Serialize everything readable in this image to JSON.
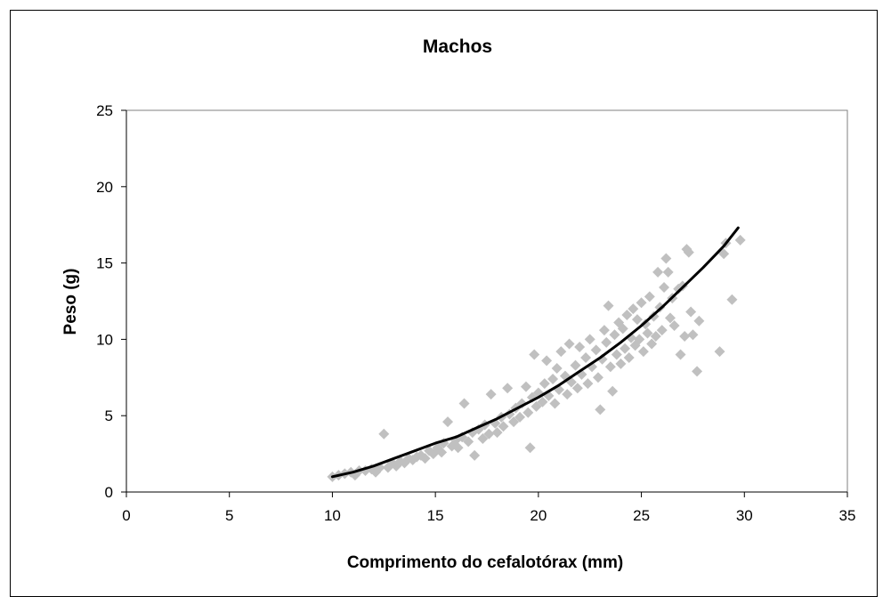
{
  "chart_data": {
    "type": "scatter",
    "title": "Machos",
    "xlabel": "Comprimento do cefalotórax (mm)",
    "ylabel": "Peso (g)",
    "xlim": [
      0,
      35
    ],
    "ylim": [
      0,
      25
    ],
    "xticks": [
      0,
      5,
      10,
      15,
      20,
      25,
      30,
      35
    ],
    "yticks": [
      0,
      5,
      10,
      15,
      20,
      25
    ],
    "x_tick_labels": [
      "0",
      "5",
      "10",
      "15",
      "20",
      "25",
      "30",
      "35"
    ],
    "y_tick_labels": [
      "0",
      "5",
      "10",
      "15",
      "20",
      "25"
    ],
    "grid": false,
    "legend": "none",
    "marker_color": "#c0c0c0",
    "line_color": "#000000",
    "series": [
      {
        "kind": "points",
        "points": [
          [
            10.0,
            1.0
          ],
          [
            10.3,
            1.1
          ],
          [
            10.6,
            1.2
          ],
          [
            10.9,
            1.3
          ],
          [
            11.1,
            1.1
          ],
          [
            11.3,
            1.4
          ],
          [
            11.6,
            1.4
          ],
          [
            11.9,
            1.5
          ],
          [
            12.1,
            1.3
          ],
          [
            12.3,
            1.6
          ],
          [
            12.5,
            3.8
          ],
          [
            12.7,
            1.6
          ],
          [
            12.9,
            1.9
          ],
          [
            13.1,
            1.7
          ],
          [
            13.3,
            2.0
          ],
          [
            13.5,
            1.9
          ],
          [
            13.7,
            2.2
          ],
          [
            13.9,
            2.1
          ],
          [
            14.1,
            2.3
          ],
          [
            14.3,
            2.4
          ],
          [
            14.5,
            2.2
          ],
          [
            14.7,
            2.7
          ],
          [
            14.9,
            2.5
          ],
          [
            15.1,
            2.9
          ],
          [
            15.3,
            2.6
          ],
          [
            15.4,
            3.2
          ],
          [
            15.6,
            4.6
          ],
          [
            15.8,
            3.0
          ],
          [
            16.0,
            3.4
          ],
          [
            16.1,
            2.9
          ],
          [
            16.3,
            3.6
          ],
          [
            16.4,
            5.8
          ],
          [
            16.6,
            3.3
          ],
          [
            16.8,
            3.9
          ],
          [
            16.9,
            2.4
          ],
          [
            17.1,
            4.1
          ],
          [
            17.3,
            3.5
          ],
          [
            17.4,
            4.4
          ],
          [
            17.6,
            3.8
          ],
          [
            17.7,
            6.4
          ],
          [
            17.9,
            4.5
          ],
          [
            18.0,
            3.9
          ],
          [
            18.2,
            4.9
          ],
          [
            18.3,
            4.3
          ],
          [
            18.5,
            6.8
          ],
          [
            18.6,
            5.1
          ],
          [
            18.8,
            4.6
          ],
          [
            18.9,
            5.5
          ],
          [
            19.1,
            4.9
          ],
          [
            19.2,
            5.8
          ],
          [
            19.4,
            6.9
          ],
          [
            19.5,
            5.2
          ],
          [
            19.6,
            2.9
          ],
          [
            19.7,
            6.2
          ],
          [
            19.8,
            9.0
          ],
          [
            19.9,
            5.6
          ],
          [
            20.0,
            6.5
          ],
          [
            20.2,
            5.9
          ],
          [
            20.3,
            7.1
          ],
          [
            20.4,
            8.6
          ],
          [
            20.5,
            6.3
          ],
          [
            20.7,
            7.4
          ],
          [
            20.8,
            5.8
          ],
          [
            20.9,
            8.1
          ],
          [
            21.0,
            6.7
          ],
          [
            21.1,
            9.2
          ],
          [
            21.3,
            7.6
          ],
          [
            21.4,
            6.4
          ],
          [
            21.5,
            9.7
          ],
          [
            21.6,
            7.2
          ],
          [
            21.8,
            8.3
          ],
          [
            21.9,
            6.8
          ],
          [
            22.0,
            9.5
          ],
          [
            22.1,
            7.7
          ],
          [
            22.3,
            8.8
          ],
          [
            22.4,
            7.1
          ],
          [
            22.5,
            10.0
          ],
          [
            22.6,
            8.2
          ],
          [
            22.8,
            9.3
          ],
          [
            22.9,
            7.5
          ],
          [
            23.0,
            5.4
          ],
          [
            23.1,
            8.7
          ],
          [
            23.2,
            10.6
          ],
          [
            23.3,
            9.8
          ],
          [
            23.4,
            12.2
          ],
          [
            23.5,
            8.2
          ],
          [
            23.6,
            6.6
          ],
          [
            23.7,
            10.3
          ],
          [
            23.8,
            9.0
          ],
          [
            23.9,
            11.1
          ],
          [
            24.0,
            8.4
          ],
          [
            24.1,
            10.7
          ],
          [
            24.2,
            9.4
          ],
          [
            24.3,
            11.6
          ],
          [
            24.4,
            8.8
          ],
          [
            24.5,
            10.1
          ],
          [
            24.6,
            12.0
          ],
          [
            24.7,
            9.6
          ],
          [
            24.8,
            11.3
          ],
          [
            24.9,
            10.0
          ],
          [
            25.0,
            12.4
          ],
          [
            25.1,
            9.2
          ],
          [
            25.2,
            11.0
          ],
          [
            25.3,
            10.4
          ],
          [
            25.4,
            12.8
          ],
          [
            25.5,
            9.7
          ],
          [
            25.6,
            11.5
          ],
          [
            25.7,
            10.2
          ],
          [
            25.8,
            14.4
          ],
          [
            25.9,
            12.1
          ],
          [
            26.0,
            10.6
          ],
          [
            26.1,
            13.4
          ],
          [
            26.2,
            15.3
          ],
          [
            26.3,
            14.4
          ],
          [
            26.4,
            11.4
          ],
          [
            26.5,
            12.7
          ],
          [
            26.6,
            10.9
          ],
          [
            26.8,
            13.3
          ],
          [
            26.9,
            9.0
          ],
          [
            27.0,
            13.5
          ],
          [
            27.1,
            10.2
          ],
          [
            27.2,
            15.9
          ],
          [
            27.3,
            15.7
          ],
          [
            27.4,
            11.8
          ],
          [
            27.5,
            10.3
          ],
          [
            27.7,
            7.9
          ],
          [
            27.8,
            11.2
          ],
          [
            28.8,
            9.2
          ],
          [
            29.0,
            15.6
          ],
          [
            29.1,
            16.3
          ],
          [
            29.4,
            12.6
          ],
          [
            29.8,
            16.5
          ]
        ]
      },
      {
        "kind": "fit",
        "x": [
          10,
          11,
          12,
          13,
          14,
          15,
          16,
          17,
          18,
          19,
          20,
          21,
          22,
          23,
          24,
          25,
          26,
          27,
          28,
          29,
          29.7
        ],
        "values": [
          1.0,
          1.3,
          1.7,
          2.2,
          2.7,
          3.2,
          3.6,
          4.2,
          4.8,
          5.5,
          6.2,
          7.0,
          7.9,
          8.8,
          9.8,
          10.9,
          12.1,
          13.4,
          14.7,
          16.1,
          17.3
        ]
      }
    ]
  }
}
